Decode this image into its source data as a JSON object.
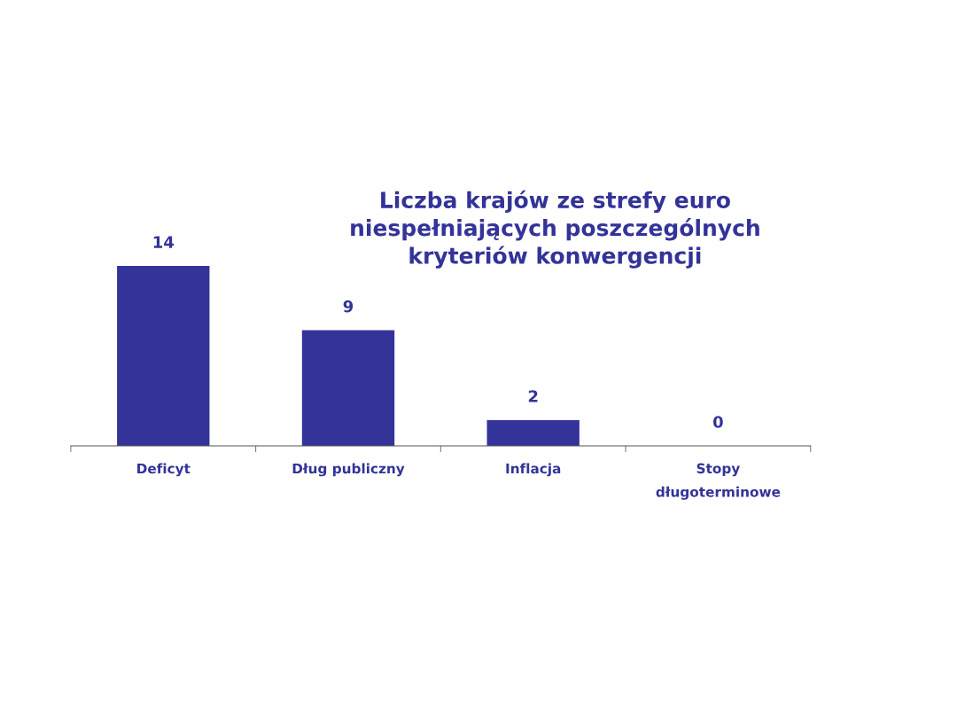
{
  "chart_data": {
    "type": "bar",
    "title": "Liczba krajów ze strefy euro\nniespełniających poszczególnych\nkryteriów konwergencji",
    "categories": [
      "Deficyt",
      "Dług publiczny",
      "Inflacja",
      "Stopy\ndługoterminowe"
    ],
    "values": [
      14,
      9,
      2,
      0
    ],
    "color": "#333399",
    "data_labels": true,
    "grid": false,
    "legend": false
  }
}
